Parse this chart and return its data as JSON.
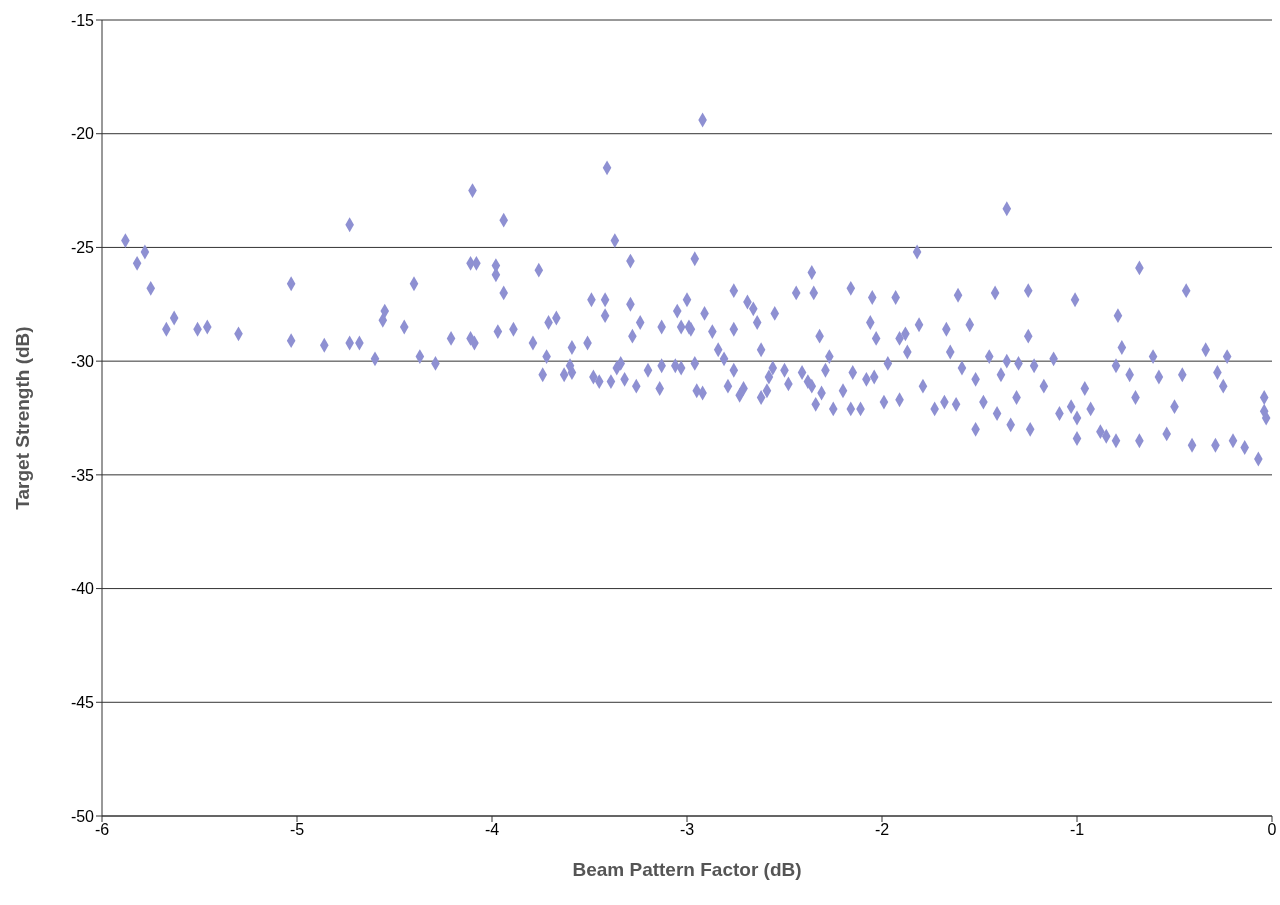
{
  "chart_data": {
    "type": "scatter",
    "xlabel": "Beam Pattern Factor (dB)",
    "ylabel": "Target Strength (dB)",
    "xlim": [
      -6,
      0
    ],
    "xticks": [
      -6,
      -5,
      -4,
      -3,
      -2,
      -1,
      0
    ],
    "ylim": [
      -50,
      -15
    ],
    "yticks": [
      -50,
      -45,
      -40,
      -35,
      -30,
      -25,
      -20,
      -15
    ],
    "grid": "y",
    "legend": false,
    "marker": "diamond",
    "series": [
      {
        "color": "#8e90d2",
        "x": [
          -5.88,
          -5.82,
          -5.78,
          -5.75,
          -5.67,
          -5.63,
          -5.51,
          -5.46,
          -5.3,
          -5.03,
          -5.03,
          -4.86,
          -4.73,
          -4.73,
          -4.68,
          -4.6,
          -4.56,
          -4.55,
          -4.45,
          -4.4,
          -4.37,
          -4.29,
          -4.21,
          -4.1,
          -4.11,
          -4.08,
          -4.11,
          -4.09,
          -3.98,
          -3.98,
          -3.97,
          -3.94,
          -3.94,
          -3.89,
          -3.79,
          -3.76,
          -3.74,
          -3.72,
          -3.71,
          -3.67,
          -3.63,
          -3.6,
          -3.59,
          -3.59,
          -3.51,
          -3.49,
          -3.48,
          -3.45,
          -3.42,
          -3.41,
          -3.42,
          -3.39,
          -3.36,
          -3.34,
          -3.37,
          -3.32,
          -3.29,
          -3.29,
          -3.28,
          -3.26,
          -3.24,
          -3.2,
          -3.14,
          -3.13,
          -3.13,
          -3.06,
          -3.05,
          -3.03,
          -3.03,
          -3.0,
          -2.99,
          -2.98,
          -2.96,
          -2.96,
          -2.95,
          -2.92,
          -2.92,
          -2.91,
          -2.87,
          -2.84,
          -2.81,
          -2.79,
          -2.76,
          -2.76,
          -2.76,
          -2.73,
          -2.71,
          -2.69,
          -2.66,
          -2.64,
          -2.62,
          -2.59,
          -2.58,
          -2.55,
          -2.56,
          -2.5,
          -2.48,
          -2.44,
          -2.41,
          -2.38,
          -2.36,
          -2.36,
          -2.35,
          -2.34,
          -2.32,
          -2.31,
          -2.29,
          -2.27,
          -2.25,
          -2.2,
          -2.16,
          -2.16,
          -2.15,
          -2.11,
          -2.08,
          -2.06,
          -2.05,
          -2.04,
          -2.03,
          -1.99,
          -1.97,
          -1.93,
          -1.91,
          -1.88,
          -1.87,
          -1.82,
          -1.81,
          -1.79,
          -1.73,
          -1.67,
          -1.65,
          -1.62,
          -1.61,
          -1.59,
          -1.55,
          -1.52,
          -1.48,
          -1.45,
          -1.42,
          -1.41,
          -1.39,
          -1.36,
          -1.36,
          -1.31,
          -1.3,
          -1.25,
          -1.25,
          -1.22,
          -1.17,
          -1.12,
          -1.09,
          -1.03,
          -1.01,
          -1.0,
          -0.96,
          -0.93,
          -0.88,
          -0.85,
          -0.8,
          -0.79,
          -0.77,
          -0.73,
          -0.7,
          -0.68,
          -0.68,
          -0.61,
          -0.58,
          -0.5,
          -0.46,
          -0.44,
          -0.41,
          -0.34,
          -0.28,
          -0.25,
          -0.23,
          -0.2,
          -0.14,
          -0.07,
          -0.04,
          -0.04,
          -0.03,
          -1.34,
          -1.24,
          -1.0,
          -0.8,
          -0.54,
          -0.29,
          -1.52,
          -1.68,
          -1.91,
          -2.62
        ],
        "values": [
          -24.7,
          -25.7,
          -25.2,
          -26.8,
          -28.6,
          -28.1,
          -28.6,
          -28.5,
          -28.8,
          -26.6,
          -29.1,
          -29.3,
          -24.0,
          -29.2,
          -29.2,
          -29.9,
          -28.2,
          -27.8,
          -28.5,
          -26.6,
          -29.8,
          -30.1,
          -29.0,
          -22.5,
          -25.7,
          -25.7,
          -29.0,
          -29.2,
          -25.8,
          -26.2,
          -28.7,
          -23.8,
          -27.0,
          -28.6,
          -29.2,
          -26.0,
          -30.6,
          -29.8,
          -28.3,
          -28.1,
          -30.6,
          -30.2,
          -29.4,
          -30.5,
          -29.2,
          -27.3,
          -30.7,
          -30.9,
          -27.3,
          -21.5,
          -28.0,
          -30.9,
          -30.3,
          -30.1,
          -24.7,
          -30.8,
          -25.6,
          -27.5,
          -28.9,
          -31.1,
          -28.3,
          -30.4,
          -31.2,
          -28.5,
          -30.2,
          -30.2,
          -27.8,
          -28.5,
          -30.3,
          -27.3,
          -28.5,
          -28.6,
          -25.5,
          -30.1,
          -31.3,
          -19.4,
          -31.4,
          -27.9,
          -28.7,
          -29.5,
          -29.9,
          -31.1,
          -26.9,
          -28.6,
          -30.4,
          -31.5,
          -31.2,
          -27.4,
          -27.7,
          -28.3,
          -29.5,
          -31.3,
          -30.7,
          -27.9,
          -30.3,
          -30.4,
          -31.0,
          -27.0,
          -30.5,
          -30.9,
          -26.1,
          -31.1,
          -27.0,
          -31.9,
          -28.9,
          -31.4,
          -30.4,
          -29.8,
          -32.1,
          -31.3,
          -32.1,
          -26.8,
          -30.5,
          -32.1,
          -30.8,
          -28.3,
          -27.2,
          -30.7,
          -29.0,
          -31.8,
          -30.1,
          -27.2,
          -29.0,
          -28.8,
          -29.6,
          -25.2,
          -28.4,
          -31.1,
          -32.1,
          -28.6,
          -29.6,
          -31.9,
          -27.1,
          -30.3,
          -28.4,
          -30.8,
          -31.8,
          -29.8,
          -27.0,
          -32.3,
          -30.6,
          -23.3,
          -30.0,
          -31.6,
          -30.1,
          -26.9,
          -28.9,
          -30.2,
          -31.1,
          -29.9,
          -32.3,
          -32.0,
          -27.3,
          -32.5,
          -31.2,
          -32.1,
          -33.1,
          -33.3,
          -30.2,
          -28.0,
          -29.4,
          -30.6,
          -31.6,
          -25.9,
          -33.5,
          -29.8,
          -30.7,
          -32.0,
          -30.6,
          -26.9,
          -33.7,
          -29.5,
          -30.5,
          -31.1,
          -29.8,
          -33.5,
          -33.8,
          -34.3,
          -31.6,
          -32.2,
          -32.5,
          -32.8,
          -33.0,
          -33.4,
          -33.5,
          -33.2,
          -33.7,
          -33.0,
          -31.8,
          -31.7,
          -31.6
        ]
      }
    ]
  }
}
